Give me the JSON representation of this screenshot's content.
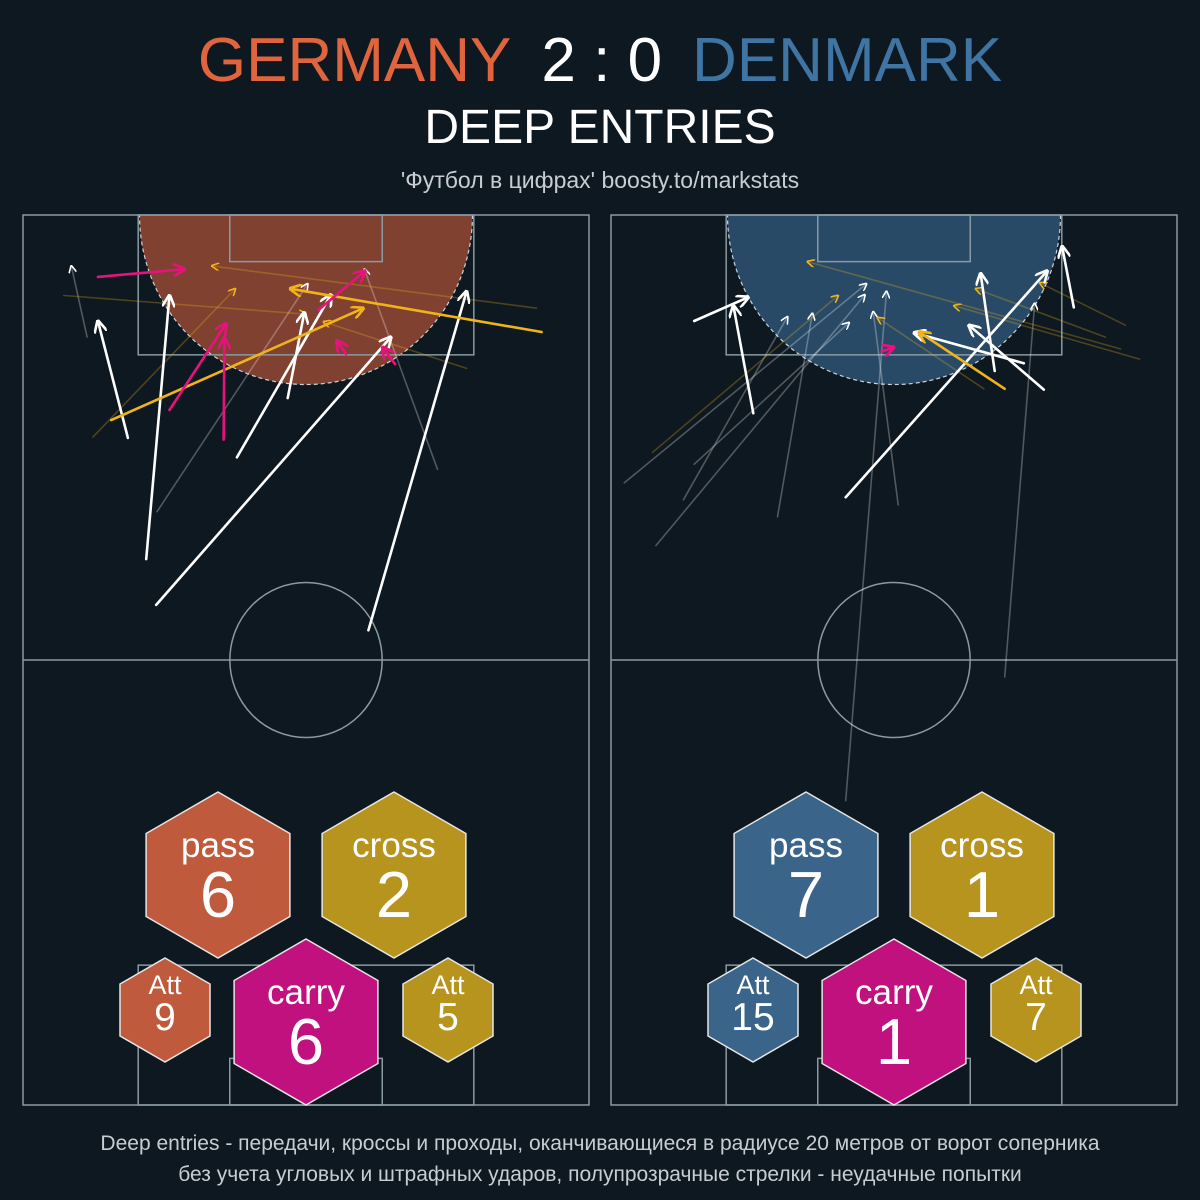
{
  "match": {
    "home_team": "GERMANY",
    "away_team": "DENMARK",
    "score": "2 : 0"
  },
  "title": "DEEP ENTRIES",
  "subtitle": "'Футбол в цифрах' boosty.to/markstats",
  "footer": {
    "line1": "Deep entries - передачи, кроссы и проходы, оканчивающиеся в радиусе 20 метров от ворот соперника",
    "line2": "без учета угловых и штрафных ударов, полупрозрачные стрелки - неудачные попытки"
  },
  "colors": {
    "background": "#0e1820",
    "home": "#e0653e",
    "away": "#3f74a3",
    "pass_home": "#bf5a3c",
    "pass_away": "#3a6489",
    "cross": "#b7941e",
    "carry": "#c0117e",
    "arrow_pass": "#ffffff",
    "arrow_cross": "#f0b41a",
    "arrow_carry": "#e8127f",
    "pitch_lines": "#8a9aa3"
  },
  "chart_data": [
    {
      "type": "scatter",
      "team": "GERMANY",
      "pitch_length_m": 105,
      "pitch_width_m": 68,
      "zone_radius_m": 20,
      "stats": {
        "pass": {
          "label": "pass",
          "value": 6
        },
        "cross": {
          "label": "cross",
          "value": 2
        },
        "carry": {
          "label": "carry",
          "value": 6
        },
        "pass_attempts": {
          "label": "Att",
          "value": 9
        },
        "cross_attempts": {
          "label": "Att",
          "value": 5
        }
      },
      "arrows": [
        {
          "kind": "pass",
          "success": true,
          "from": [
            56.0,
            41.5
          ],
          "to": [
            96.0,
            53.3
          ]
        },
        {
          "kind": "pass",
          "success": true,
          "from": [
            59.0,
            16.0
          ],
          "to": [
            90.6,
            44.2
          ]
        },
        {
          "kind": "pass",
          "success": true,
          "from": [
            76.4,
            25.7
          ],
          "to": [
            95.6,
            37.0
          ]
        },
        {
          "kind": "pass",
          "success": true,
          "from": [
            83.4,
            31.8
          ],
          "to": [
            93.5,
            33.8
          ]
        },
        {
          "kind": "pass",
          "success": true,
          "from": [
            64.4,
            14.8
          ],
          "to": [
            95.5,
            17.6
          ]
        },
        {
          "kind": "pass",
          "success": true,
          "from": [
            78.7,
            12.6
          ],
          "to": [
            92.5,
            9.0
          ]
        },
        {
          "kind": "pass",
          "success": false,
          "from": [
            90.6,
            7.7
          ],
          "to": [
            99.0,
            5.8
          ]
        },
        {
          "kind": "pass",
          "success": false,
          "from": [
            75.0,
            49.8
          ],
          "to": [
            98.6,
            41.0
          ]
        },
        {
          "kind": "pass",
          "success": false,
          "from": [
            70.0,
            16.1
          ],
          "to": [
            96.9,
            34.2
          ]
        },
        {
          "kind": "cross",
          "success": true,
          "from": [
            91.2,
            62.3
          ],
          "to": [
            96.3,
            32.1
          ]
        },
        {
          "kind": "cross",
          "success": true,
          "from": [
            80.8,
            10.6
          ],
          "to": [
            94.0,
            40.9
          ]
        },
        {
          "kind": "cross",
          "success": false,
          "from": [
            94.0,
            61.7
          ],
          "to": [
            99.0,
            22.7
          ]
        },
        {
          "kind": "cross",
          "success": false,
          "from": [
            95.5,
            4.9
          ],
          "to": [
            93.3,
            34.0
          ]
        },
        {
          "kind": "cross",
          "success": false,
          "from": [
            78.8,
            8.4
          ],
          "to": [
            96.3,
            25.5
          ]
        },
        {
          "kind": "cross",
          "success": false,
          "from": [
            86.9,
            53.3
          ],
          "to": [
            92.4,
            36.1
          ]
        },
        {
          "kind": "carry",
          "success": true,
          "from": [
            97.7,
            9.0
          ],
          "to": [
            98.6,
            19.4
          ]
        },
        {
          "kind": "carry",
          "success": true,
          "from": [
            78.5,
            24.1
          ],
          "to": [
            90.5,
            24.2
          ]
        },
        {
          "kind": "carry",
          "success": true,
          "from": [
            82.0,
            17.6
          ],
          "to": [
            92.2,
            24.4
          ]
        },
        {
          "kind": "carry",
          "success": true,
          "from": [
            88.6,
            38.8
          ],
          "to": [
            90.2,
            37.7
          ]
        },
        {
          "kind": "carry",
          "success": true,
          "from": [
            87.4,
            44.7
          ],
          "to": [
            89.4,
            43.2
          ]
        },
        {
          "kind": "carry",
          "success": true,
          "from": [
            93.8,
            35.5
          ],
          "to": [
            98.4,
            41.1
          ]
        }
      ]
    },
    {
      "type": "scatter",
      "team": "DENMARK",
      "pitch_length_m": 105,
      "pitch_width_m": 68,
      "zone_radius_m": 20,
      "stats": {
        "pass": {
          "label": "pass",
          "value": 7
        },
        "cross": {
          "label": "cross",
          "value": 1
        },
        "carry": {
          "label": "carry",
          "value": 1
        },
        "pass_attempts": {
          "label": "Att",
          "value": 15
        },
        "cross_attempts": {
          "label": "Att",
          "value": 7
        }
      },
      "arrows": [
        {
          "kind": "pass",
          "success": true,
          "from": [
            92.5,
            10.0
          ],
          "to": [
            95.3,
            16.5
          ]
        },
        {
          "kind": "pass",
          "success": true,
          "from": [
            71.7,
            28.2
          ],
          "to": [
            98.4,
            52.4
          ]
        },
        {
          "kind": "pass",
          "success": true,
          "from": [
            81.6,
            17.1
          ],
          "to": [
            94.3,
            14.7
          ]
        },
        {
          "kind": "pass",
          "success": true,
          "from": [
            86.6,
            46.1
          ],
          "to": [
            98.1,
            44.4
          ]
        },
        {
          "kind": "pass",
          "success": true,
          "from": [
            94.1,
            55.6
          ],
          "to": [
            101.3,
            54.2
          ]
        },
        {
          "kind": "pass",
          "success": true,
          "from": [
            84.4,
            52.0
          ],
          "to": [
            92.0,
            43.0
          ]
        },
        {
          "kind": "pass",
          "success": true,
          "from": [
            87.5,
            49.6
          ],
          "to": [
            91.1,
            36.4
          ]
        },
        {
          "kind": "pass",
          "success": false,
          "from": [
            73.4,
            1.6
          ],
          "to": [
            96.9,
            30.7
          ]
        },
        {
          "kind": "pass",
          "success": false,
          "from": [
            66.0,
            5.4
          ],
          "to": [
            95.6,
            30.5
          ]
        },
        {
          "kind": "pass",
          "success": false,
          "from": [
            50.5,
            47.3
          ],
          "to": [
            94.6,
            50.9
          ]
        },
        {
          "kind": "pass",
          "success": false,
          "from": [
            35.9,
            28.2
          ],
          "to": [
            96.0,
            33.1
          ]
        },
        {
          "kind": "pass",
          "success": false,
          "from": [
            71.4,
            8.7
          ],
          "to": [
            93.0,
            21.2
          ]
        },
        {
          "kind": "pass",
          "success": false,
          "from": [
            69.4,
            20.0
          ],
          "to": [
            93.4,
            24.2
          ]
        },
        {
          "kind": "pass",
          "success": false,
          "from": [
            75.6,
            10.0
          ],
          "to": [
            92.3,
            28.6
          ]
        },
        {
          "kind": "pass",
          "success": false,
          "from": [
            70.8,
            34.5
          ],
          "to": [
            93.6,
            31.5
          ]
        },
        {
          "kind": "cross",
          "success": true,
          "from": [
            84.5,
            47.3
          ],
          "to": [
            91.2,
            37.0
          ]
        },
        {
          "kind": "cross",
          "success": false,
          "from": [
            92.0,
            61.8
          ],
          "to": [
            97.0,
            51.5
          ]
        },
        {
          "kind": "cross",
          "success": false,
          "from": [
            77.0,
            5.0
          ],
          "to": [
            95.5,
            27.3
          ]
        },
        {
          "kind": "cross",
          "success": false,
          "from": [
            88.0,
            63.5
          ],
          "to": [
            94.3,
            41.2
          ]
        },
        {
          "kind": "cross",
          "success": false,
          "from": [
            89.2,
            61.2
          ],
          "to": [
            99.5,
            23.6
          ]
        },
        {
          "kind": "cross",
          "success": false,
          "from": [
            90.6,
            59.4
          ],
          "to": [
            96.3,
            43.8
          ]
        },
        {
          "kind": "cross",
          "success": false,
          "from": [
            84.5,
            44.8
          ],
          "to": [
            92.9,
            32.0
          ]
        },
        {
          "kind": "carry",
          "success": true,
          "from": [
            88.9,
            32.5
          ],
          "to": [
            89.4,
            34.0
          ]
        }
      ]
    }
  ]
}
